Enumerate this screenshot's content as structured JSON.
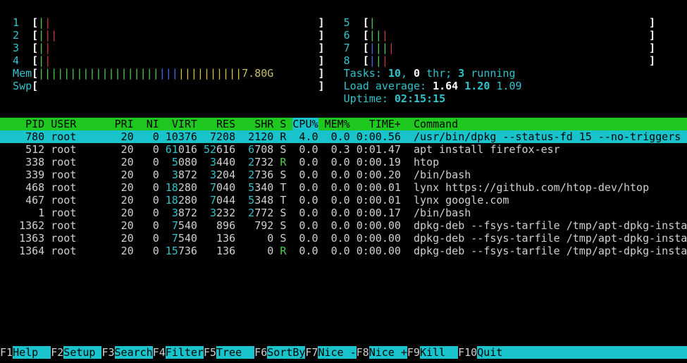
{
  "meters": {
    "open": "[",
    "close": "]",
    "left": [
      {
        "label": "1",
        "bars": [
          {
            "text": "|",
            "color": "#4cd14c"
          },
          {
            "text": "|",
            "color": "#d43a3a"
          }
        ]
      },
      {
        "label": "2",
        "bars": [
          {
            "text": "|",
            "color": "#4cd14c"
          },
          {
            "text": "||",
            "color": "#d43a3a"
          }
        ]
      },
      {
        "label": "3",
        "bars": [
          {
            "text": "|",
            "color": "#4cd14c"
          },
          {
            "text": "|",
            "color": "#d43a3a"
          }
        ]
      },
      {
        "label": "4",
        "bars": [
          {
            "text": "|",
            "color": "#4cd14c"
          },
          {
            "text": "|",
            "color": "#d43a3a"
          }
        ]
      },
      {
        "label": "Mem",
        "bars": [
          {
            "text": "|||||||||||||||||||",
            "color": "#4cd14c"
          },
          {
            "text": "|||",
            "color": "#4a6cf0"
          },
          {
            "text": "||||||||||",
            "color": "#d6c33a"
          }
        ],
        "value": "7.80G"
      },
      {
        "label": "Swp",
        "bars": []
      }
    ],
    "right": [
      {
        "label": "5",
        "bars": [
          {
            "text": "|",
            "color": "#4cd14c"
          }
        ]
      },
      {
        "label": "6",
        "bars": [
          {
            "text": "||",
            "color": "#4cd14c"
          },
          {
            "text": "|",
            "color": "#d43a3a"
          }
        ]
      },
      {
        "label": "7",
        "bars": [
          {
            "text": "|",
            "color": "#4a6cf0"
          },
          {
            "text": "||",
            "color": "#4cd14c"
          },
          {
            "text": "|",
            "color": "#d43a3a"
          }
        ]
      },
      {
        "label": "8",
        "bars": [
          {
            "text": "|",
            "color": "#4a6cf0"
          },
          {
            "text": "|",
            "color": "#4cd14c"
          },
          {
            "text": "|",
            "color": "#d43a3a"
          }
        ]
      }
    ]
  },
  "summary": [
    [
      {
        "text": "Tasks: ",
        "style": "cyan"
      },
      {
        "text": "10",
        "style": "bold-cyan"
      },
      {
        "text": ", ",
        "style": "cyan"
      },
      {
        "text": "0",
        "style": "bold"
      },
      {
        "text": " thr; ",
        "style": "cyan"
      },
      {
        "text": "3",
        "style": "bold-cyan"
      },
      {
        "text": " running",
        "style": "cyan"
      }
    ],
    [
      {
        "text": "Load average: ",
        "style": "cyan"
      },
      {
        "text": "1.64 ",
        "style": "bold"
      },
      {
        "text": "1.20 ",
        "style": "bold-cyan"
      },
      {
        "text": "1.09",
        "style": "cyan"
      }
    ],
    [
      {
        "text": "Uptime: ",
        "style": "cyan"
      },
      {
        "text": "02:15:15",
        "style": "bold-cyan"
      }
    ]
  ],
  "processes": {
    "header": [
      "PID",
      "USER",
      "PRI",
      "NI",
      "VIRT",
      "RES",
      "SHR",
      "S",
      "CPU%",
      "MEM%",
      "TIME+",
      "Command"
    ],
    "sort_column": 8,
    "selected_row": 0,
    "rows": [
      [
        "780",
        "root",
        "20",
        "0",
        "10376",
        "7208",
        "2120",
        "R",
        "4.0",
        "0.0",
        "0:00.56",
        "/usr/bin/dpkg --status-fd 15 --no-triggers"
      ],
      [
        "512",
        "root",
        "20",
        "0",
        "61016",
        "52616",
        "6708",
        "S",
        "0.0",
        "0.3",
        "0:01.47",
        "apt install firefox-esr"
      ],
      [
        "338",
        "root",
        "20",
        "0",
        "5080",
        "3440",
        "2732",
        "R",
        "0.0",
        "0.0",
        "0:00.19",
        "htop"
      ],
      [
        "339",
        "root",
        "20",
        "0",
        "3872",
        "3204",
        "2736",
        "S",
        "0.0",
        "0.0",
        "0:00.20",
        "/bin/bash"
      ],
      [
        "468",
        "root",
        "20",
        "0",
        "18280",
        "7040",
        "5340",
        "T",
        "0.0",
        "0.0",
        "0:00.01",
        "lynx https://github.com/htop-dev/htop"
      ],
      [
        "467",
        "root",
        "20",
        "0",
        "18280",
        "7044",
        "5348",
        "T",
        "0.0",
        "0.0",
        "0:00.01",
        "lynx google.com"
      ],
      [
        "1",
        "root",
        "20",
        "0",
        "3872",
        "3232",
        "2772",
        "S",
        "0.0",
        "0.0",
        "0:00.17",
        "/bin/bash"
      ],
      [
        "1362",
        "root",
        "20",
        "0",
        "7540",
        "896",
        "792",
        "S",
        "0.0",
        "0.0",
        "0:00.00",
        "dpkg-deb --fsys-tarfile /tmp/apt-dpkg-insta"
      ],
      [
        "1363",
        "root",
        "20",
        "0",
        "7540",
        "136",
        "0",
        "S",
        "0.0",
        "0.0",
        "0:00.00",
        "dpkg-deb --fsys-tarfile /tmp/apt-dpkg-insta"
      ],
      [
        "1364",
        "root",
        "20",
        "0",
        "15736",
        "136",
        "0",
        "R",
        "0.0",
        "0.0",
        "0:00.00",
        "dpkg-deb --fsys-tarfile /tmp/apt-dpkg-insta"
      ]
    ]
  },
  "function_keys": [
    {
      "key": "F1",
      "label": "Help"
    },
    {
      "key": "F2",
      "label": "Setup"
    },
    {
      "key": "F3",
      "label": "Search"
    },
    {
      "key": "F4",
      "label": "Filter"
    },
    {
      "key": "F5",
      "label": "Tree"
    },
    {
      "key": "F6",
      "label": "SortBy"
    },
    {
      "key": "F7",
      "label": "Nice -"
    },
    {
      "key": "F8",
      "label": "Nice +"
    },
    {
      "key": "F9",
      "label": "Kill"
    },
    {
      "key": "F10",
      "label": "Quit"
    }
  ]
}
